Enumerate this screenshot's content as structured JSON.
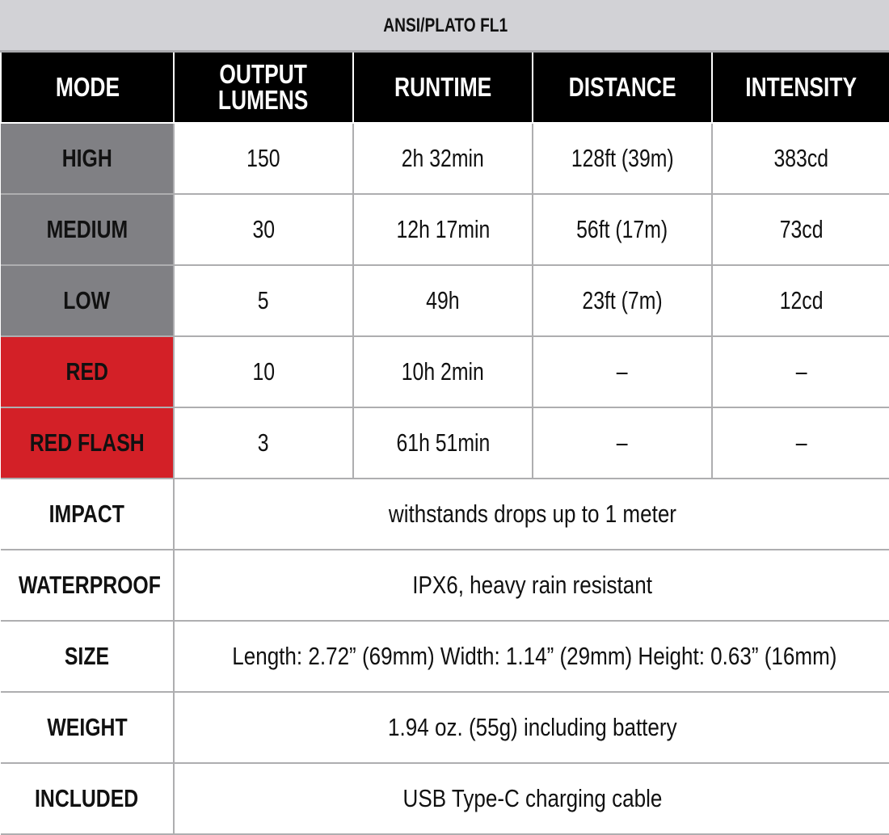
{
  "title": "ANSI/PLATO FL1",
  "columns": [
    "MODE",
    "OUTPUT\nLUMENS",
    "RUNTIME",
    "DISTANCE",
    "INTENSITY"
  ],
  "modes": [
    {
      "mode": "HIGH",
      "style": "gray",
      "lumens": "150",
      "runtime": "2h 32min",
      "distance": "128ft (39m)",
      "intensity": "383cd"
    },
    {
      "mode": "MEDIUM",
      "style": "gray",
      "lumens": "30",
      "runtime": "12h 17min",
      "distance": "56ft (17m)",
      "intensity": "73cd"
    },
    {
      "mode": "LOW",
      "style": "gray",
      "lumens": "5",
      "runtime": "49h",
      "distance": "23ft (7m)",
      "intensity": "12cd"
    },
    {
      "mode": "RED",
      "style": "red",
      "lumens": "10",
      "runtime": "10h 2min",
      "distance": "–",
      "intensity": "–"
    },
    {
      "mode": "RED FLASH",
      "style": "red",
      "lumens": "3",
      "runtime": "61h 51min",
      "distance": "–",
      "intensity": "–"
    }
  ],
  "specs": [
    {
      "label": "IMPACT",
      "value": "withstands drops up to 1 meter"
    },
    {
      "label": "WATERPROOF",
      "value": "IPX6, heavy rain resistant"
    },
    {
      "label": "SIZE",
      "value": "Length: 2.72” (69mm) Width: 1.14” (29mm) Height: 0.63” (16mm)"
    },
    {
      "label": "WEIGHT",
      "value": "1.94 oz. (55g) including battery"
    },
    {
      "label": "INCLUDED",
      "value": "USB Type-C charging cable"
    }
  ],
  "colors": {
    "title_bg": "#d2d2d6",
    "header_bg": "#000000",
    "mode_gray": "#808084",
    "mode_red": "#d32027",
    "grid": "#aeaeb0"
  }
}
